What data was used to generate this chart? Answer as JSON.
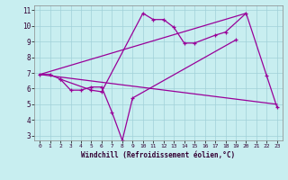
{
  "xlabel": "Windchill (Refroidissement éolien,°C)",
  "background_color": "#c8eef0",
  "grid_color": "#a0d0d8",
  "line_color": "#990099",
  "xlim": [
    -0.5,
    23.5
  ],
  "ylim": [
    2.7,
    11.3
  ],
  "xticks": [
    0,
    1,
    2,
    3,
    4,
    5,
    6,
    7,
    8,
    9,
    10,
    11,
    12,
    13,
    14,
    15,
    16,
    17,
    18,
    19,
    20,
    21,
    22,
    23
  ],
  "yticks": [
    3,
    4,
    5,
    6,
    7,
    8,
    9,
    10,
    11
  ],
  "series": [
    {
      "x": [
        0,
        20
      ],
      "y": [
        6.9,
        10.8
      ],
      "marker": false
    },
    {
      "x": [
        0,
        23
      ],
      "y": [
        6.9,
        5.0
      ],
      "marker": false
    },
    {
      "comment": "upper zigzag with markers: starts 6.9,6.9,6.6 then 5.9,5.8 then up to 10.8,10.4,10.4,9.9 then 8.9,8.9 then 9.4,9.6 then 10.8 then down 6.8,4.8",
      "x": [
        0,
        1,
        2,
        5,
        6,
        10,
        11,
        12,
        13,
        14,
        15,
        17,
        18,
        20,
        22,
        23
      ],
      "y": [
        6.9,
        6.9,
        6.6,
        5.9,
        5.8,
        10.8,
        10.4,
        10.4,
        9.9,
        8.9,
        8.9,
        9.4,
        9.6,
        10.8,
        6.8,
        4.8
      ],
      "marker": true
    },
    {
      "x": [
        2,
        3,
        4,
        5,
        6,
        7,
        8,
        9,
        19
      ],
      "y": [
        6.6,
        5.9,
        5.9,
        6.1,
        6.1,
        4.5,
        2.7,
        5.4,
        9.1
      ],
      "marker": true
    }
  ]
}
